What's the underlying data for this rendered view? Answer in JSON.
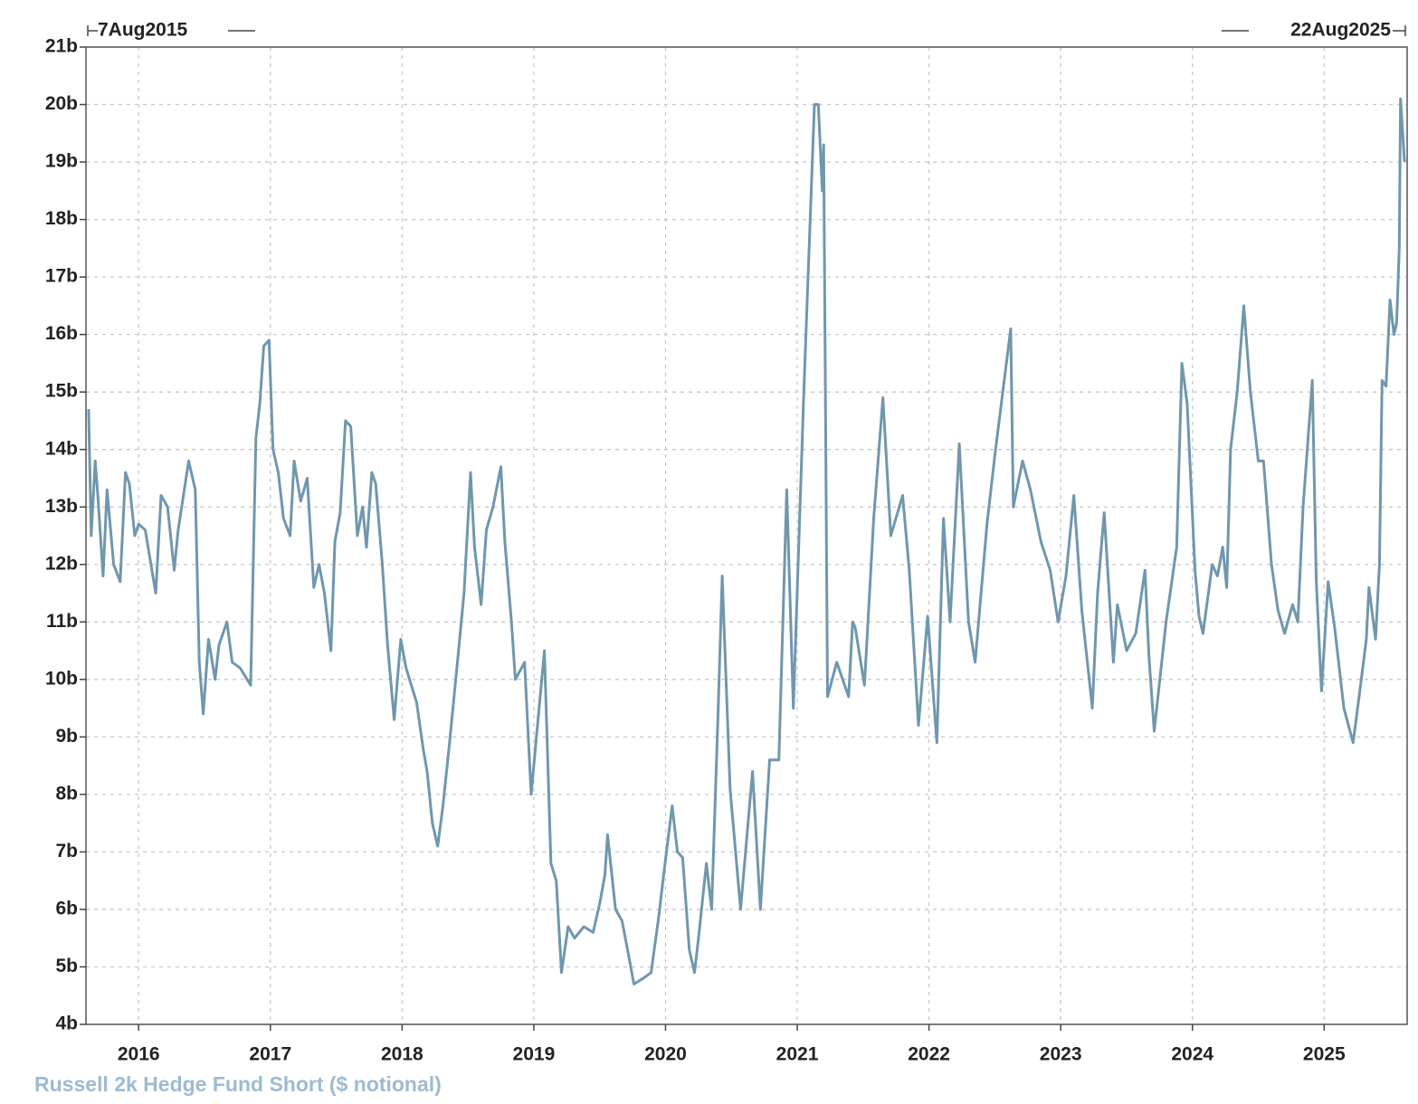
{
  "chart_data": {
    "type": "line",
    "start_label": "7Aug2015",
    "end_label": "22Aug2025",
    "x": [
      2015.62,
      2015.64,
      2015.67,
      2015.69,
      2015.73,
      2015.76,
      2015.81,
      2015.86,
      2015.9,
      2015.93,
      2015.97,
      2016.0,
      2016.05,
      2016.13,
      2016.17,
      2016.22,
      2016.27,
      2016.3,
      2016.34,
      2016.38,
      2016.43,
      2016.46,
      2016.49,
      2016.53,
      2016.58,
      2016.61,
      2016.67,
      2016.71,
      2016.77,
      2016.85,
      2016.89,
      2016.92,
      2016.95,
      2016.99,
      2017.02,
      2017.06,
      2017.1,
      2017.15,
      2017.18,
      2017.23,
      2017.28,
      2017.33,
      2017.37,
      2017.41,
      2017.46,
      2017.49,
      2017.53,
      2017.57,
      2017.61,
      2017.66,
      2017.7,
      2017.73,
      2017.77,
      2017.8,
      2017.85,
      2017.89,
      2017.94,
      2017.99,
      2018.03,
      2018.07,
      2018.11,
      2018.16,
      2018.19,
      2018.23,
      2018.27,
      2018.31,
      2018.36,
      2018.42,
      2018.47,
      2018.52,
      2018.55,
      2018.6,
      2018.64,
      2018.69,
      2018.75,
      2018.78,
      2018.83,
      2018.86,
      2018.93,
      2018.98,
      2019.02,
      2019.08,
      2019.13,
      2019.17,
      2019.21,
      2019.26,
      2019.31,
      2019.38,
      2019.45,
      2019.5,
      2019.54,
      2019.56,
      2019.62,
      2019.67,
      2019.72,
      2019.76,
      2019.83,
      2019.89,
      2019.95,
      2019.98,
      2020.05,
      2020.09,
      2020.13,
      2020.18,
      2020.22,
      2020.25,
      2020.31,
      2020.35,
      2020.4,
      2020.43,
      2020.49,
      2020.57,
      2020.66,
      2020.72,
      2020.79,
      2020.86,
      2020.92,
      2020.97,
      2021.05,
      2021.13,
      2021.16,
      2021.19,
      2021.2,
      2021.23,
      2021.3,
      2021.39,
      2021.42,
      2021.44,
      2021.51,
      2021.58,
      2021.65,
      2021.71,
      2021.8,
      2021.85,
      2021.92,
      2021.99,
      2022.06,
      2022.11,
      2022.16,
      2022.23,
      2022.3,
      2022.35,
      2022.44,
      2022.5,
      2022.62,
      2022.64,
      2022.71,
      2022.77,
      2022.85,
      2022.92,
      2022.98,
      2023.04,
      2023.1,
      2023.16,
      2023.24,
      2023.28,
      2023.33,
      2023.4,
      2023.43,
      2023.5,
      2023.57,
      2023.64,
      2023.67,
      2023.71,
      2023.8,
      2023.88,
      2023.92,
      2023.96,
      2024.02,
      2024.05,
      2024.08,
      2024.15,
      2024.19,
      2024.23,
      2024.26,
      2024.29,
      2024.34,
      2024.39,
      2024.44,
      2024.5,
      2024.54,
      2024.6,
      2024.65,
      2024.7,
      2024.76,
      2024.8,
      2024.84,
      2024.91,
      2024.94,
      2024.98,
      2025.03,
      2025.08,
      2025.15,
      2025.22,
      2025.26,
      2025.32,
      2025.34,
      2025.39,
      2025.42,
      2025.44,
      2025.47,
      2025.5,
      2025.53,
      2025.55,
      2025.57,
      2025.58,
      2025.61
    ],
    "series": [
      {
        "name": "Russell 2k Hedge Fund Short ($ notional)",
        "color": "#6f97ad",
        "values": [
          14.7,
          12.5,
          13.8,
          13.2,
          11.8,
          13.3,
          12.0,
          11.7,
          13.6,
          13.4,
          12.5,
          12.7,
          12.6,
          11.5,
          13.2,
          13.0,
          11.9,
          12.6,
          13.2,
          13.8,
          13.3,
          10.3,
          9.4,
          10.7,
          10.0,
          10.6,
          11.0,
          10.3,
          10.2,
          9.9,
          14.2,
          14.8,
          15.8,
          15.9,
          14.0,
          13.6,
          12.8,
          12.5,
          13.8,
          13.1,
          13.5,
          11.6,
          12.0,
          11.5,
          10.5,
          12.4,
          12.9,
          14.5,
          14.4,
          12.5,
          13.0,
          12.3,
          13.6,
          13.4,
          12.0,
          10.6,
          9.3,
          10.7,
          10.2,
          9.9,
          9.6,
          8.8,
          8.4,
          7.5,
          7.1,
          7.8,
          8.9,
          10.3,
          11.5,
          13.6,
          12.3,
          11.3,
          12.6,
          13.0,
          13.7,
          12.4,
          11.0,
          10.0,
          10.3,
          8.0,
          9.0,
          10.5,
          6.8,
          6.5,
          4.9,
          5.7,
          5.5,
          5.7,
          5.6,
          6.1,
          6.6,
          7.3,
          6.0,
          5.8,
          5.2,
          4.7,
          4.8,
          4.9,
          5.9,
          6.5,
          7.8,
          7.0,
          6.9,
          5.3,
          4.9,
          5.5,
          6.8,
          6.0,
          9.5,
          11.8,
          8.1,
          6.0,
          8.4,
          6.0,
          8.6,
          8.6,
          13.3,
          9.5,
          15.0,
          20.0,
          20.0,
          18.5,
          19.3,
          9.7,
          10.3,
          9.7,
          11.0,
          10.9,
          9.9,
          12.8,
          14.9,
          12.5,
          13.2,
          11.9,
          9.2,
          11.1,
          8.9,
          12.8,
          11.0,
          14.1,
          11.0,
          10.3,
          12.7,
          13.9,
          16.1,
          13.0,
          13.8,
          13.3,
          12.4,
          11.9,
          11.0,
          11.8,
          13.2,
          11.2,
          9.5,
          11.5,
          12.9,
          10.3,
          11.3,
          10.5,
          10.8,
          11.9,
          10.4,
          9.1,
          11.0,
          12.3,
          15.5,
          14.8,
          11.9,
          11.1,
          10.8,
          12.0,
          11.8,
          12.3,
          11.6,
          14.0,
          15.0,
          16.5,
          15.0,
          13.8,
          13.8,
          12.0,
          11.2,
          10.8,
          11.3,
          11.0,
          13.0,
          15.2,
          11.7,
          9.8,
          11.7,
          10.9,
          9.5,
          8.9,
          9.6,
          10.7,
          11.6,
          10.7,
          12.0,
          15.2,
          15.1,
          16.6,
          16.0,
          16.2,
          17.5,
          20.1,
          19.0
        ]
      }
    ],
    "xlim": [
      2015.6,
      2025.63
    ],
    "xticks": [
      2016,
      2017,
      2018,
      2019,
      2020,
      2021,
      2022,
      2023,
      2024,
      2025
    ],
    "ylim": [
      4,
      21
    ],
    "yticks": [
      {
        "value": 4,
        "label": "4b"
      },
      {
        "value": 5,
        "label": "5b"
      },
      {
        "value": 6,
        "label": "6b"
      },
      {
        "value": 7,
        "label": "7b"
      },
      {
        "value": 8,
        "label": "8b"
      },
      {
        "value": 9,
        "label": "9b"
      },
      {
        "value": 10,
        "label": "10b"
      },
      {
        "value": 11,
        "label": "11b"
      },
      {
        "value": 12,
        "label": "12b"
      },
      {
        "value": 13,
        "label": "13b"
      },
      {
        "value": 14,
        "label": "14b"
      },
      {
        "value": 15,
        "label": "15b"
      },
      {
        "value": 16,
        "label": "16b"
      },
      {
        "value": 17,
        "label": "17b"
      },
      {
        "value": 18,
        "label": "18b"
      },
      {
        "value": 19,
        "label": "19b"
      },
      {
        "value": 20,
        "label": "20b"
      },
      {
        "value": 21,
        "label": "21b"
      }
    ],
    "grid": true
  }
}
